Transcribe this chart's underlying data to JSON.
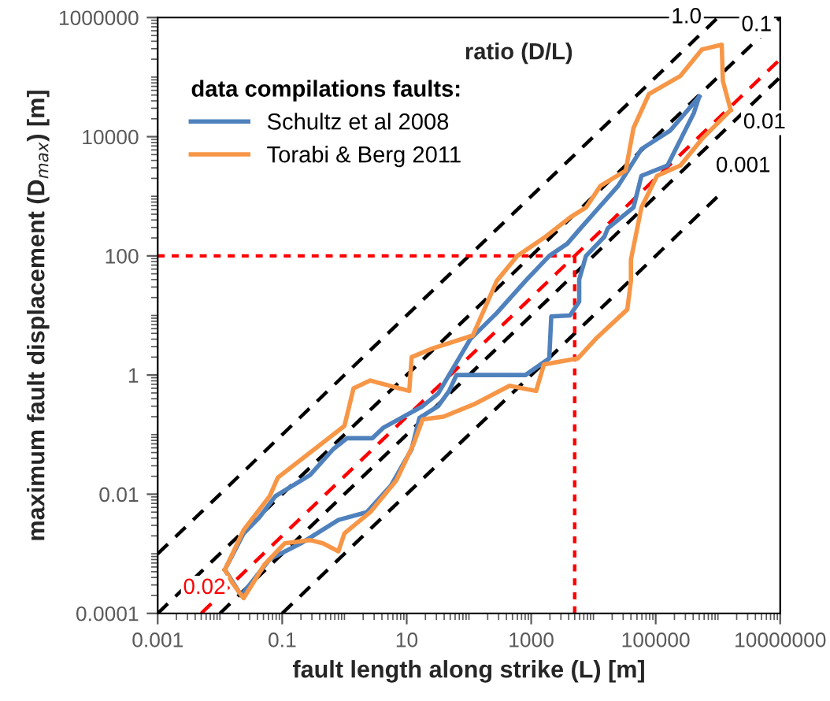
{
  "chart_data": {
    "type": "line",
    "xlabel": "fault length along strike (L) [m]",
    "ylabel": "maximum fault displacement (D$_{max}$) [m]",
    "legend_title": "data compilations faults:",
    "legend": "top left",
    "log": "xy",
    "grid": false,
    "marker": "none",
    "xlim": [
      0.001,
      10000000
    ],
    "ylim": [
      0.0001,
      1000000
    ],
    "xticks": [
      0.001,
      0.1,
      10,
      1000,
      100000,
      10000000
    ],
    "yticks": [
      0.0001,
      0.01,
      1,
      100,
      10000,
      1000000
    ],
    "series": [
      {
        "name": "Schultz et al 2008",
        "color": "#4f81bd",
        "line_style": "solid",
        "x": [
          0.012,
          0.024,
          0.043,
          0.078,
          0.28,
          0.66,
          1.1,
          2.8,
          4.2,
          18,
          32,
          105,
          280,
          810,
          1950,
          3800,
          6200,
          25000,
          59000,
          170000,
          500000
        ],
        "values": [
          0.00054,
          0.0022,
          0.0041,
          0.0093,
          0.021,
          0.057,
          0.087,
          0.087,
          0.13,
          0.3,
          0.49,
          4,
          11,
          38,
          100,
          160,
          290,
          1500,
          6200,
          12600,
          47000
        ]
      },
      {
        "color": "#4f81bd",
        "line_style": "solid",
        "x": [
          0.012,
          0.022,
          0.063,
          0.2,
          0.8,
          2.3,
          5.6,
          12,
          16,
          32,
          48,
          63,
          130,
          810,
          1950,
          2100,
          4200,
          5900,
          5900,
          7600,
          15000,
          17000,
          44000,
          59000,
          155000,
          410000,
          500000
        ],
        "values": [
          0.00054,
          0.0002,
          0.00081,
          0.0015,
          0.0037,
          0.005,
          0.014,
          0.057,
          0.19,
          0.3,
          0.54,
          1,
          1,
          1,
          1.9,
          9.6,
          10,
          17,
          40,
          100,
          210,
          290,
          650,
          2200,
          3300,
          25000,
          47000
        ]
      },
      {
        "name": "Torabi & Berg 2011",
        "color": "#f79646",
        "line_style": "solid",
        "x": [
          0.012,
          0.024,
          0.063,
          0.085,
          1,
          1.4,
          2.6,
          11,
          12,
          26,
          115,
          280,
          600,
          1700,
          4200,
          7600,
          13000,
          33000,
          44000,
          78000,
          250000,
          550000,
          1150000,
          1200000,
          1600000
        ],
        "values": [
          0.00054,
          0.0025,
          0.0093,
          0.019,
          0.14,
          0.6,
          0.81,
          0.54,
          2,
          2.8,
          4.6,
          38,
          100,
          210,
          440,
          650,
          1500,
          2700,
          14000,
          52000,
          105000,
          290000,
          350000,
          86000,
          28000
        ]
      },
      {
        "color": "#f79646",
        "line_style": "solid",
        "x": [
          0.012,
          0.016,
          0.024,
          0.052,
          0.11,
          0.28,
          0.45,
          0.8,
          1,
          2.6,
          6.8,
          13,
          18,
          39,
          126,
          450,
          1200,
          1600,
          5600,
          11000,
          35000,
          40000,
          40000,
          59000,
          105000,
          250000,
          550000,
          1600000
        ],
        "values": [
          0.00054,
          0.00032,
          0.00018,
          0.00066,
          0.0015,
          0.0017,
          0.0015,
          0.0011,
          0.0022,
          0.005,
          0.017,
          0.071,
          0.18,
          0.2,
          0.33,
          0.66,
          0.54,
          1.5,
          1.9,
          4.1,
          12.6,
          38,
          86,
          650,
          2200,
          3300,
          9100,
          28000
        ]
      },
      {
        "name": "1.0",
        "color": "#000000",
        "line_style": "dashed",
        "x": [
          0.001,
          1000000
        ],
        "values": [
          0.001,
          1000000
        ]
      },
      {
        "name": "0.1",
        "color": "#000000",
        "line_style": "dashed",
        "x": [
          0.001,
          10000000
        ],
        "values": [
          0.0001,
          1000000
        ]
      },
      {
        "name": "0.01",
        "color": "#000000",
        "line_style": "dashed",
        "x": [
          0.01,
          10000000
        ],
        "values": [
          0.0001,
          100000
        ]
      },
      {
        "name": "0.001",
        "color": "#000000",
        "line_style": "dashed",
        "x": [
          0.1,
          1000000
        ],
        "values": [
          0.0001,
          1000
        ]
      },
      {
        "name": "0.02",
        "color": "#ff0000",
        "line_style": "dashed",
        "x": [
          0.005,
          10000000
        ],
        "values": [
          0.0001,
          200000
        ]
      },
      {
        "color": "#ff0000",
        "line_style": "dotted",
        "x": [
          0.001,
          5000
        ],
        "values": [
          100,
          100
        ]
      },
      {
        "color": "#ff0000",
        "line_style": "dotted",
        "x": [
          5000,
          5000
        ],
        "values": [
          0.0001,
          100
        ]
      }
    ],
    "annotations": [
      "ratio (D/L)"
    ]
  }
}
